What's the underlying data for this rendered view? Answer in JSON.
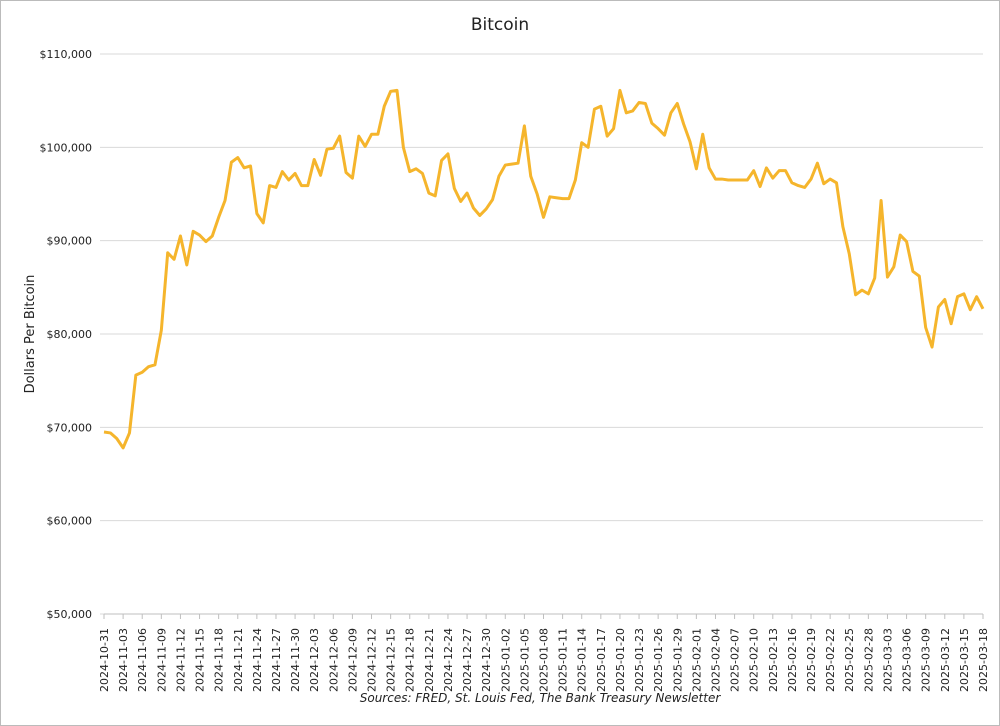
{
  "chart_data": {
    "type": "line",
    "title": "Bitcoin",
    "y_label": "Dollars Per  Bitcoin",
    "source": "Sources: FRED, St. Louis Fed, The Bank Treasury Newsletter",
    "color": "#f5b52c",
    "grid": true,
    "ylim": [
      50000,
      110000
    ],
    "yticks": [
      {
        "value": 50000,
        "label": "$50,000"
      },
      {
        "value": 60000,
        "label": "$60,000"
      },
      {
        "value": 70000,
        "label": "$70,000"
      },
      {
        "value": 80000,
        "label": "$80,000"
      },
      {
        "value": 90000,
        "label": "$90,000"
      },
      {
        "value": 100000,
        "label": "$100,000"
      },
      {
        "value": 110000,
        "label": "$110,000"
      }
    ],
    "categories": [
      "2024-10-31",
      null,
      null,
      "2024-11-03",
      null,
      null,
      "2024-11-06",
      null,
      null,
      "2024-11-09",
      null,
      null,
      "2024-11-12",
      null,
      null,
      "2024-11-15",
      null,
      null,
      "2024-11-18",
      null,
      null,
      "2024-11-21",
      null,
      null,
      "2024-11-24",
      null,
      null,
      "2024-11-27",
      null,
      null,
      "2024-11-30",
      null,
      null,
      "2024-12-03",
      null,
      null,
      "2024-12-06",
      null,
      null,
      "2024-12-09",
      null,
      null,
      "2024-12-12",
      null,
      null,
      "2024-12-15",
      null,
      null,
      "2024-12-18",
      null,
      null,
      "2024-12-21",
      null,
      null,
      "2024-12-24",
      null,
      null,
      "2024-12-27",
      null,
      null,
      "2024-12-30",
      null,
      null,
      "2025-01-02",
      null,
      null,
      "2025-01-05",
      null,
      null,
      "2025-01-08",
      null,
      null,
      "2025-01-11",
      null,
      null,
      "2025-01-14",
      null,
      null,
      "2025-01-17",
      null,
      null,
      "2025-01-20",
      null,
      null,
      "2025-01-23",
      null,
      null,
      "2025-01-26",
      null,
      null,
      "2025-01-29",
      null,
      null,
      "2025-02-01",
      null,
      null,
      "2025-02-04",
      null,
      null,
      "2025-02-07",
      null,
      null,
      "2025-02-10",
      null,
      null,
      "2025-02-13",
      null,
      null,
      "2025-02-16",
      null,
      null,
      "2025-02-19",
      null,
      null,
      "2025-02-22",
      null,
      null,
      "2025-02-25",
      null,
      null,
      "2025-02-28",
      null,
      null,
      "2025-03-03",
      null,
      null,
      "2025-03-06",
      null,
      null,
      "2025-03-09",
      null,
      null,
      "2025-03-12",
      null,
      null,
      "2025-03-15",
      null,
      null,
      "2025-03-18"
    ],
    "values": [
      69500,
      69400,
      68800,
      67800,
      69400,
      75600,
      75900,
      76500,
      76700,
      80400,
      88700,
      88000,
      90500,
      87400,
      91000,
      90600,
      89900,
      90500,
      92500,
      94300,
      98400,
      98900,
      97800,
      98000,
      92900,
      91900,
      95900,
      95700,
      97400,
      96500,
      97200,
      95900,
      95900,
      98700,
      97000,
      99800,
      99900,
      101200,
      97300,
      96700,
      101200,
      100100,
      101400,
      101400,
      104400,
      106000,
      106100,
      100000,
      97400,
      97700,
      97200,
      95100,
      94800,
      98600,
      99300,
      95600,
      94200,
      95100,
      93500,
      92700,
      93400,
      94400,
      96900,
      98100,
      98200,
      98300,
      102300,
      96900,
      95000,
      92500,
      94700,
      94600,
      94500,
      94500,
      96500,
      100500,
      100000,
      104100,
      104400,
      101200,
      102000,
      106100,
      103700,
      103900,
      104800,
      104700,
      102600,
      102000,
      101300,
      103700,
      104700,
      102500,
      100600,
      97700,
      101400,
      97800,
      96600,
      96600,
      96500,
      96500,
      96500,
      96500,
      97500,
      95800,
      97800,
      96700,
      97500,
      97500,
      96200,
      95900,
      95700,
      96600,
      98300,
      96100,
      96600,
      96200,
      91500,
      88600,
      84200,
      84700,
      84300,
      86000,
      94300,
      86100,
      87200,
      90600,
      89900,
      86700,
      86200,
      80700,
      78600,
      82900,
      83700,
      81100,
      84000,
      84300,
      82600,
      84000,
      82700
    ]
  }
}
